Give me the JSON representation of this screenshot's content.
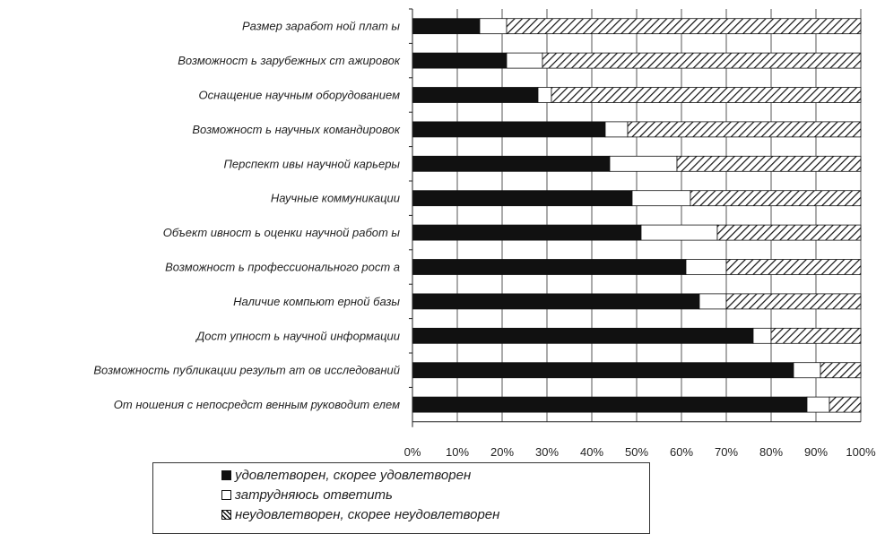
{
  "chart_data": {
    "type": "bar",
    "orientation": "horizontal",
    "stacked": "100%",
    "categories": [
      "Размер заработ ной плат ы",
      "Возможност ь зарубежных ст ажировок",
      "Оснащение научным оборудованием",
      "Возможност ь научных командировок",
      "Перспект ивы научной карьеры",
      "Научные коммуникации",
      "Объект ивност ь оценки научной работ ы",
      "Возможност ь профессионального рост а",
      "Наличие компьют ерной базы",
      "Дост упност ь научной информации",
      "Возможность публикации результ ат ов исследований",
      "От ношения с непосредст венным руководит елем"
    ],
    "series": [
      {
        "name": "удовлетворен, скорее удовлетворен",
        "fill": "black",
        "values": [
          15,
          21,
          28,
          43,
          44,
          49,
          51,
          61,
          64,
          76,
          85,
          88
        ]
      },
      {
        "name": "затрудняюсь ответить",
        "fill": "white",
        "values": [
          6,
          8,
          3,
          5,
          15,
          13,
          17,
          9,
          6,
          4,
          6,
          5
        ]
      },
      {
        "name": "неудовлетворен, скорее неудовлетворен",
        "fill": "hatched",
        "values": [
          79,
          71,
          69,
          52,
          41,
          38,
          32,
          30,
          30,
          20,
          9,
          7
        ]
      }
    ],
    "x_ticks": [
      "0%",
      "10%",
      "20%",
      "30%",
      "40%",
      "50%",
      "60%",
      "70%",
      "80%",
      "90%",
      "100%"
    ],
    "xlim": [
      0,
      100
    ],
    "grid": "vertical",
    "legend_position": "bottom",
    "colors": {
      "black": "#111111",
      "white": "#ffffff",
      "border": "#111111"
    }
  }
}
